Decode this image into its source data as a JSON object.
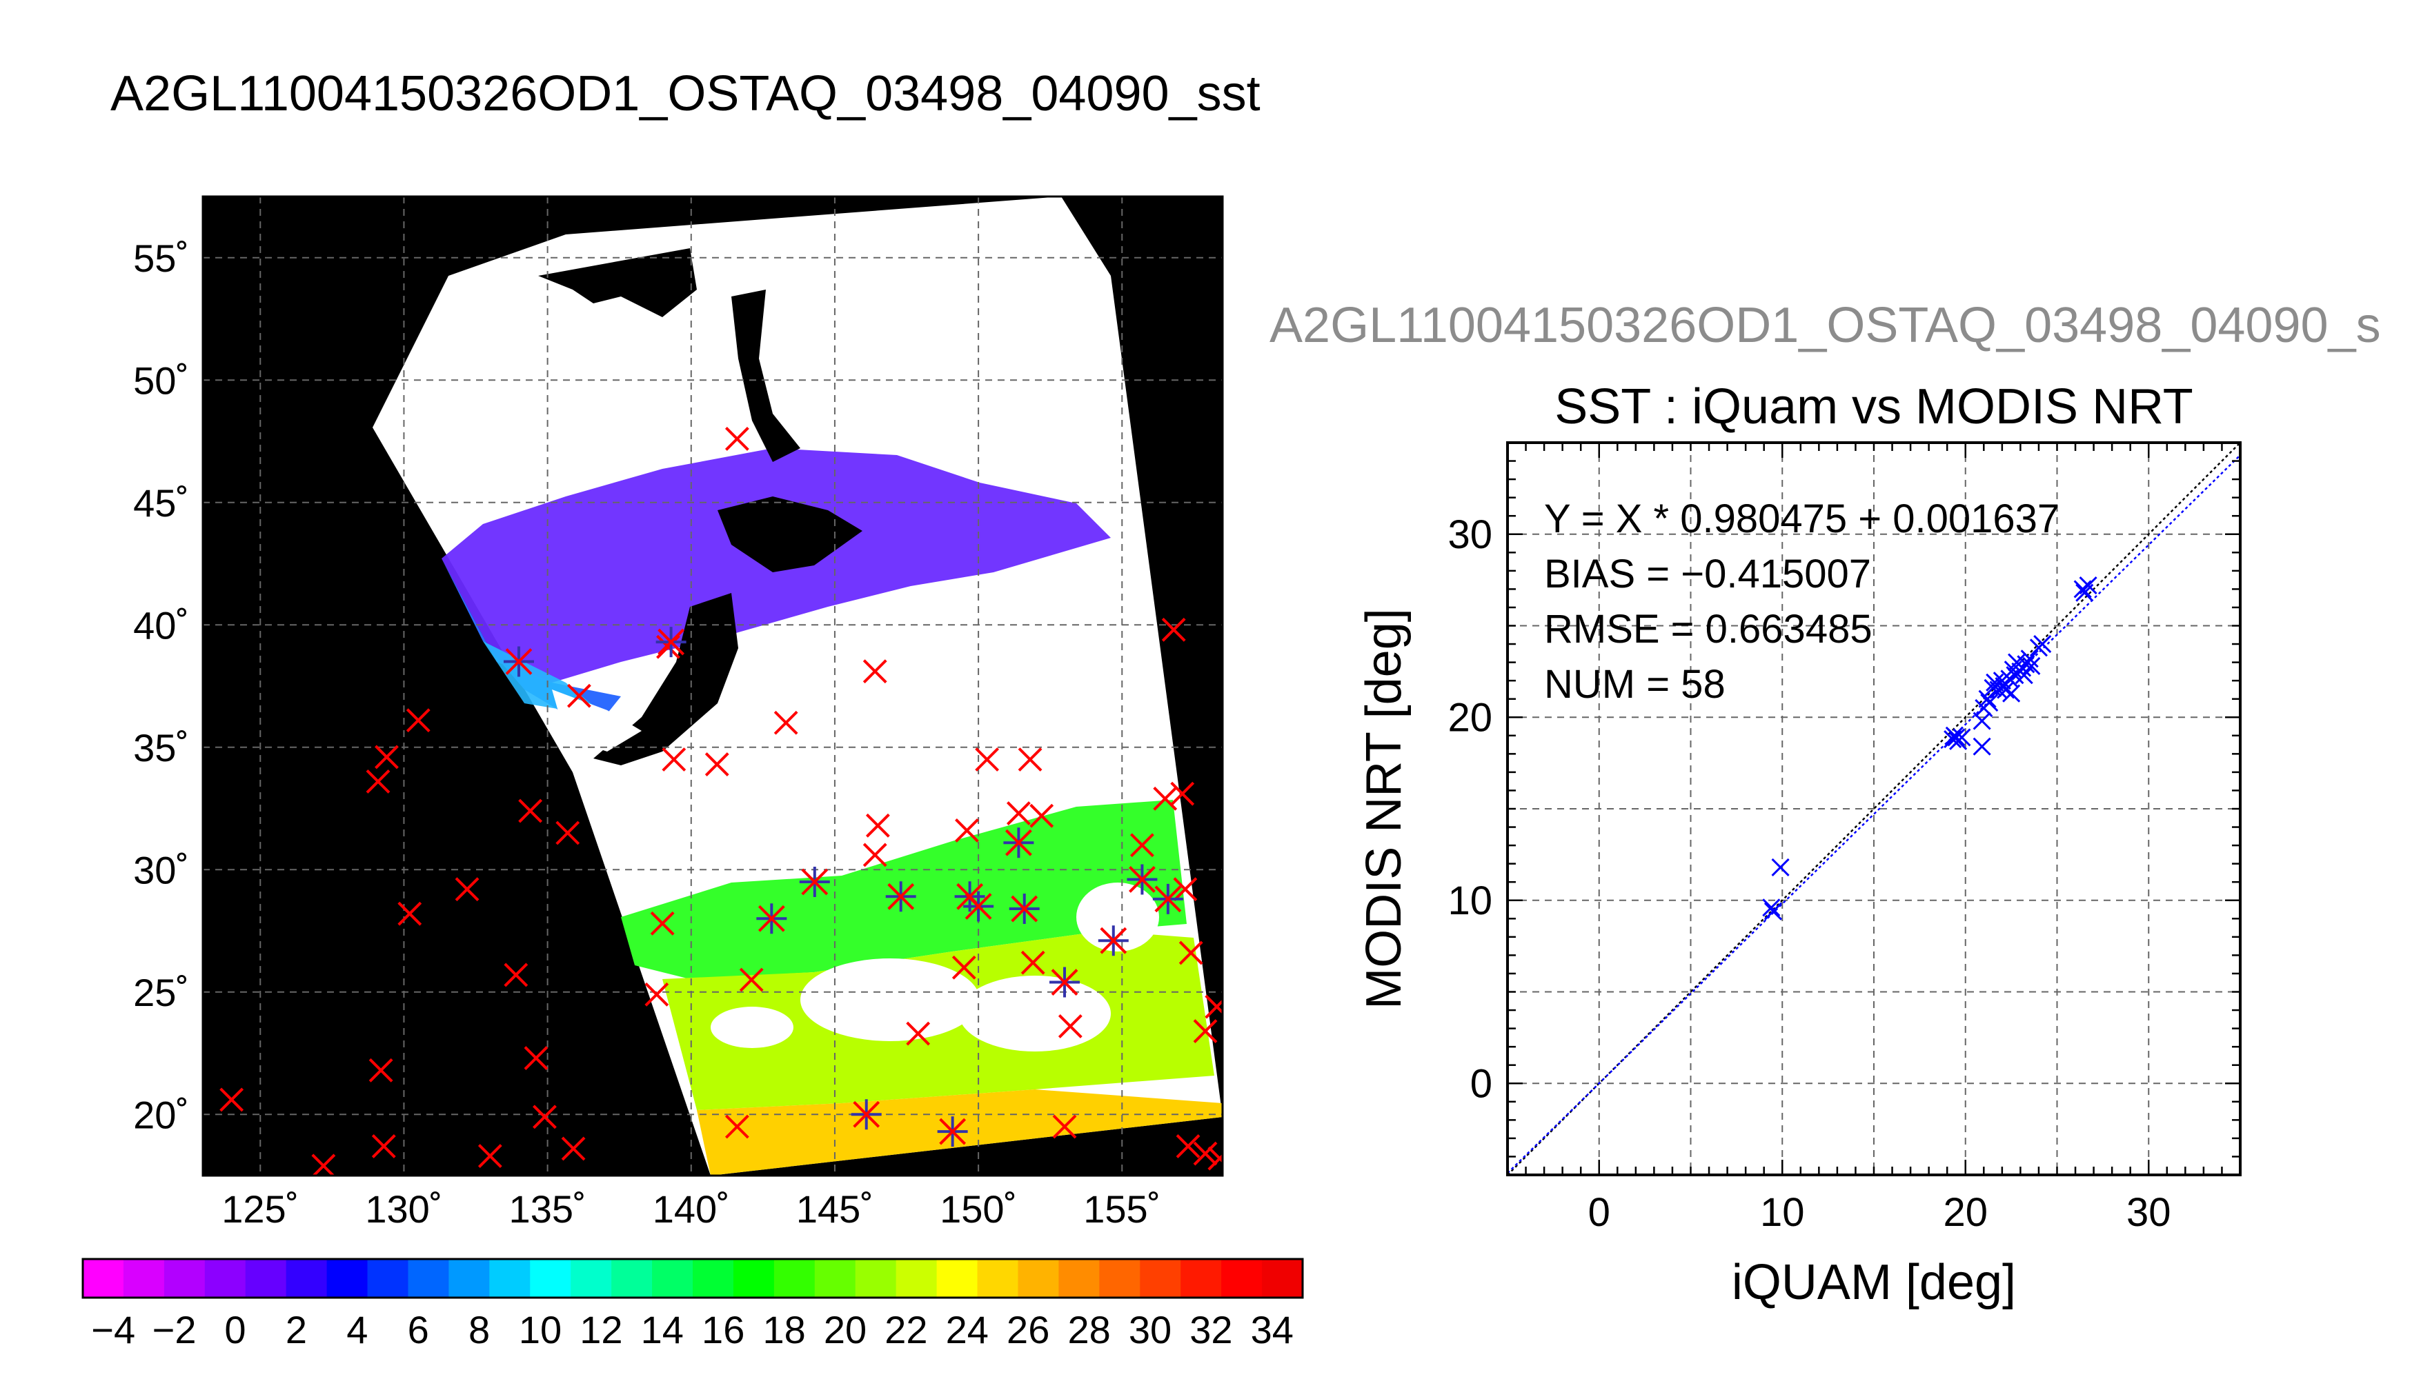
{
  "page_title": "A2GL11004150326OD1_OSTAQ_03498_04090_sst",
  "map": {
    "lon_ticks": [
      "125˚",
      "130˚",
      "135˚",
      "140˚",
      "145˚",
      "150˚",
      "155˚"
    ],
    "lat_ticks": [
      "20˚",
      "25˚",
      "30˚",
      "35˚",
      "40˚",
      "45˚",
      "50˚",
      "55˚"
    ],
    "lon_range": [
      123,
      158.5
    ],
    "lat_range": [
      17.5,
      57.5
    ],
    "grid": true,
    "background_color": "#000000",
    "cloud_color": "#ffffff"
  },
  "colorbar": {
    "tick_labels": [
      "−4",
      "−2",
      "0",
      "2",
      "4",
      "6",
      "8",
      "10",
      "12",
      "14",
      "16",
      "18",
      "20",
      "22",
      "24",
      "26",
      "28",
      "30",
      "32",
      "34"
    ],
    "range": [
      -5,
      35
    ],
    "colors": [
      "#ff00ff",
      "#d900ff",
      "#b200ff",
      "#8c00ff",
      "#6600ff",
      "#3300ff",
      "#0000ff",
      "#0033ff",
      "#0066ff",
      "#0099ff",
      "#00ccff",
      "#00ffff",
      "#00ffcc",
      "#00ff99",
      "#00ff66",
      "#00ff33",
      "#00ff00",
      "#33ff00",
      "#66ff00",
      "#99ff00",
      "#ccff00",
      "#ffff00",
      "#ffd700",
      "#ffb300",
      "#ff8c00",
      "#ff6600",
      "#ff4000",
      "#ff1a00",
      "#ff0000",
      "#f00000"
    ]
  },
  "chart_data": {
    "type": "scatter",
    "subtitle": "A2GL11004150326OD1_OSTAQ_03498_04090_s",
    "title": "SST : iQuam vs MODIS NRT",
    "xlabel": "iQUAM [deg]",
    "ylabel": "MODIS NRT [deg]",
    "xlim": [
      -5,
      35
    ],
    "ylim": [
      -5,
      35
    ],
    "x_ticks": [
      "0",
      "10",
      "20",
      "30"
    ],
    "y_ticks": [
      "0",
      "10",
      "20",
      "30"
    ],
    "grid": true,
    "color": "#0000ff",
    "stats": [
      "Y = X * 0.980475 + 0.001637",
      "BIAS = −0.415007",
      "RMSE = 0.663485",
      "NUM = 58"
    ],
    "fit": {
      "slope": 0.980475,
      "intercept": 0.001637
    },
    "points": [
      [
        9.4,
        9.6
      ],
      [
        9.5,
        9.4
      ],
      [
        9.9,
        11.8
      ],
      [
        19.3,
        18.8
      ],
      [
        19.4,
        19.0
      ],
      [
        19.5,
        18.9
      ],
      [
        19.6,
        18.7
      ],
      [
        19.8,
        18.9
      ],
      [
        20.9,
        18.4
      ],
      [
        20.9,
        19.8
      ],
      [
        21.0,
        20.5
      ],
      [
        21.2,
        21.0
      ],
      [
        21.3,
        20.8
      ],
      [
        21.5,
        21.6
      ],
      [
        21.6,
        21.9
      ],
      [
        21.8,
        21.5
      ],
      [
        22.0,
        22.0
      ],
      [
        22.1,
        21.7
      ],
      [
        22.2,
        21.5
      ],
      [
        22.4,
        22.1
      ],
      [
        22.5,
        21.3
      ],
      [
        22.6,
        22.6
      ],
      [
        22.7,
        22.3
      ],
      [
        22.8,
        23.0
      ],
      [
        23.0,
        22.5
      ],
      [
        23.1,
        22.7
      ],
      [
        23.2,
        22.3
      ],
      [
        23.3,
        22.9
      ],
      [
        23.5,
        23.2
      ],
      [
        23.6,
        22.8
      ],
      [
        24.0,
        23.8
      ],
      [
        24.2,
        24.0
      ],
      [
        26.4,
        27.0
      ],
      [
        26.5,
        26.8
      ],
      [
        26.7,
        27.2
      ]
    ]
  },
  "map_data": {
    "matchups": [
      [
        142.8,
        28.0
      ],
      [
        144.3,
        29.5
      ],
      [
        147.3,
        28.9
      ],
      [
        149.7,
        28.9
      ],
      [
        150.0,
        28.5
      ],
      [
        151.4,
        31.1
      ],
      [
        151.6,
        28.4
      ],
      [
        153.0,
        25.4
      ],
      [
        154.7,
        27.1
      ],
      [
        155.7,
        29.6
      ],
      [
        156.6,
        28.8
      ],
      [
        146.1,
        20.0
      ],
      [
        149.1,
        19.3
      ],
      [
        134.0,
        38.5
      ],
      [
        139.3,
        39.3
      ]
    ],
    "others": [
      [
        124.0,
        20.6
      ],
      [
        127.2,
        17.9
      ],
      [
        129.1,
        33.6
      ],
      [
        129.4,
        34.6
      ],
      [
        130.5,
        36.1
      ],
      [
        130.2,
        28.2
      ],
      [
        132.2,
        29.2
      ],
      [
        133.9,
        25.7
      ],
      [
        134.4,
        32.4
      ],
      [
        135.7,
        31.5
      ],
      [
        134.6,
        22.3
      ],
      [
        134.9,
        19.9
      ],
      [
        133.0,
        18.3
      ],
      [
        129.2,
        21.8
      ],
      [
        129.3,
        18.7
      ],
      [
        135.9,
        18.6
      ],
      [
        136.1,
        37.1
      ],
      [
        139.0,
        27.8
      ],
      [
        138.8,
        24.9
      ],
      [
        139.4,
        34.5
      ],
      [
        140.9,
        34.3
      ],
      [
        141.6,
        19.5
      ],
      [
        142.1,
        25.5
      ],
      [
        143.3,
        36.0
      ],
      [
        146.4,
        38.1
      ],
      [
        146.5,
        31.8
      ],
      [
        146.4,
        30.6
      ],
      [
        147.9,
        23.3
      ],
      [
        149.5,
        26.0
      ],
      [
        149.6,
        31.6
      ],
      [
        150.3,
        34.5
      ],
      [
        151.4,
        32.3
      ],
      [
        151.8,
        34.5
      ],
      [
        152.2,
        32.2
      ],
      [
        151.9,
        26.2
      ],
      [
        153.2,
        23.6
      ],
      [
        153.0,
        19.5
      ],
      [
        155.7,
        31.0
      ],
      [
        156.5,
        32.9
      ],
      [
        157.1,
        33.1
      ],
      [
        156.8,
        39.8
      ],
      [
        157.2,
        29.2
      ],
      [
        157.4,
        26.6
      ],
      [
        157.9,
        23.4
      ],
      [
        158.3,
        24.4
      ],
      [
        157.3,
        18.7
      ],
      [
        157.9,
        18.4
      ],
      [
        158.4,
        18.2
      ],
      [
        141.6,
        47.6
      ],
      [
        139.2,
        39.1
      ]
    ]
  }
}
